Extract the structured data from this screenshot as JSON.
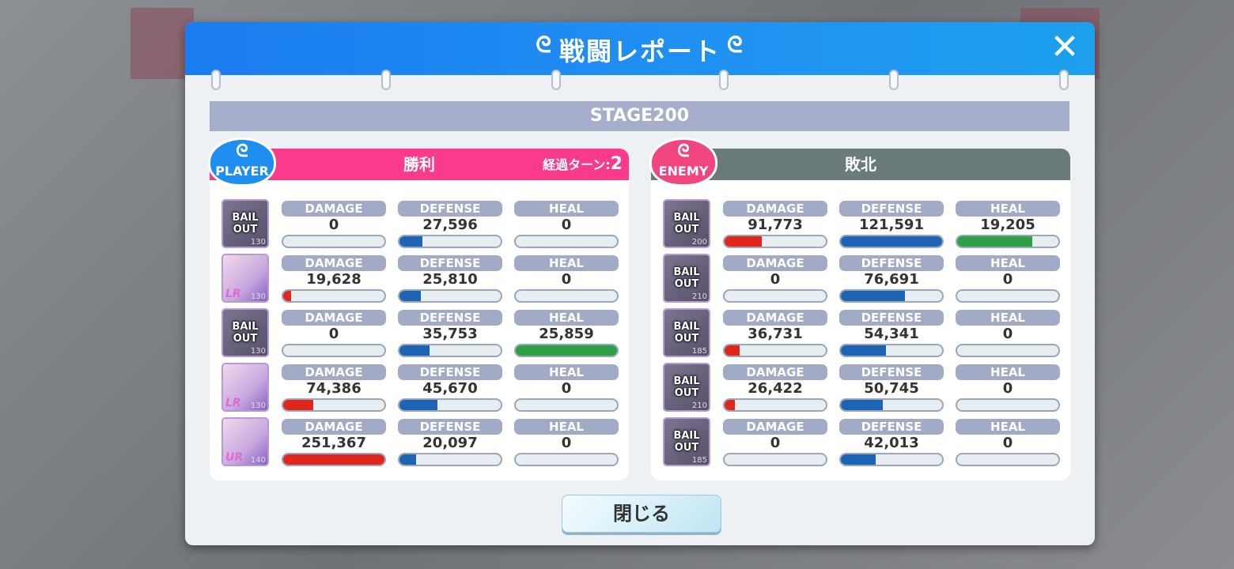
{
  "dialog": {
    "title": "戦闘レポート",
    "close_icon": "close-icon",
    "stage": "STAGE200",
    "close_button": "閉じる"
  },
  "colors": {
    "header": "#1f8ef2",
    "player": "#fa3a8a",
    "enemy": "#6b7a7a",
    "damage": "#e0261a",
    "defense": "#1e64b4",
    "heal": "#2ea043"
  },
  "stat_labels": {
    "damage": "DAMAGE",
    "defense": "DEFENSE",
    "heal": "HEAL"
  },
  "player": {
    "badge": "PLAYER",
    "result": "勝利",
    "turn_label": "経過ターン:",
    "turns": "2",
    "units": [
      {
        "bail_out": "BAIL OUT",
        "level": "130",
        "damage": "0",
        "defense": "27,596",
        "heal": "0"
      },
      {
        "bail_out": "",
        "rarity": "LR",
        "level": "130",
        "damage": "19,628",
        "defense": "25,810",
        "heal": "0"
      },
      {
        "bail_out": "BAIL OUT",
        "level": "130",
        "damage": "0",
        "defense": "35,753",
        "heal": "25,859"
      },
      {
        "bail_out": "",
        "rarity": "LR",
        "level": "130",
        "damage": "74,386",
        "defense": "45,670",
        "heal": "0"
      },
      {
        "bail_out": "",
        "rarity": "UR",
        "level": "140",
        "damage": "251,367",
        "defense": "20,097",
        "heal": "0"
      }
    ]
  },
  "enemy": {
    "badge": "ENEMY",
    "result": "敗北",
    "units": [
      {
        "bail_out": "BAIL OUT",
        "level": "200",
        "damage": "91,773",
        "defense": "121,591",
        "heal": "19,205"
      },
      {
        "bail_out": "BAIL OUT",
        "level": "210",
        "damage": "0",
        "defense": "76,691",
        "heal": "0"
      },
      {
        "bail_out": "BAIL OUT",
        "level": "185",
        "damage": "36,731",
        "defense": "54,341",
        "heal": "0"
      },
      {
        "bail_out": "BAIL OUT",
        "level": "210",
        "damage": "26,422",
        "defense": "50,745",
        "heal": "0"
      },
      {
        "bail_out": "BAIL OUT",
        "level": "185",
        "damage": "0",
        "defense": "42,013",
        "heal": "0"
      }
    ]
  }
}
